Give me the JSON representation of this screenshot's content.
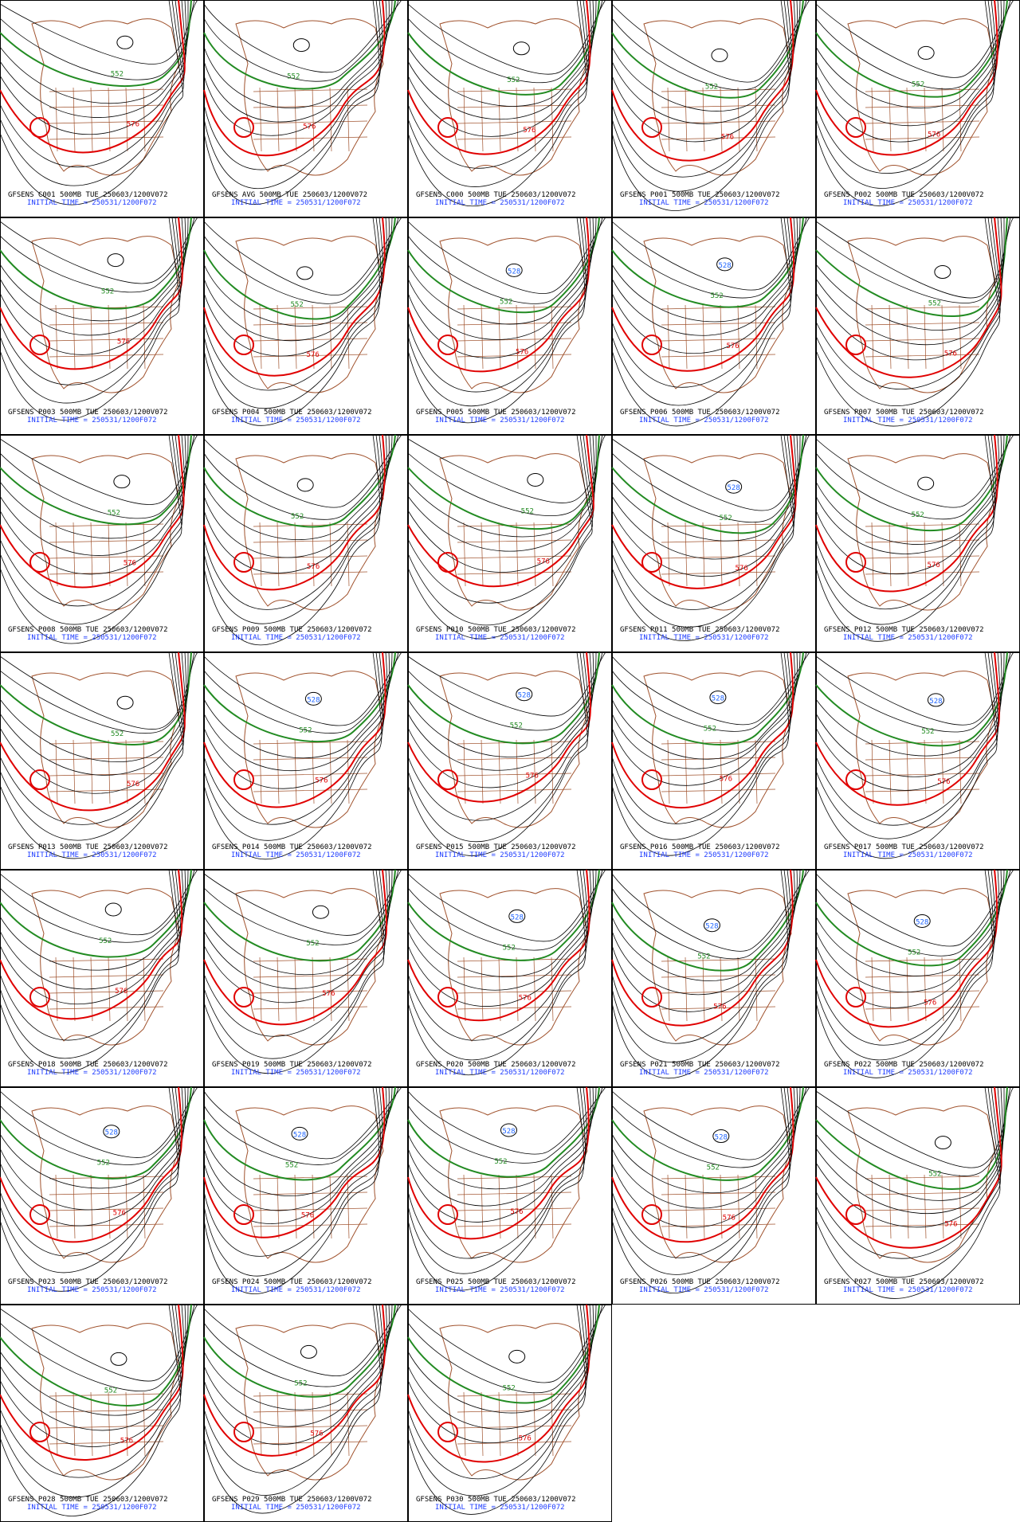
{
  "panels": [
    {
      "title": "GFSENS C001 500MB TUE 250603/1200V072",
      "subtitle": "INITIAL TIME = 250531/1200F072",
      "labels": [
        "552",
        "576"
      ]
    },
    {
      "title": "GFSENS AVG 500MB TUE 250603/1200V072",
      "subtitle": "INITIAL TIME = 250531/1200F072",
      "labels": [
        "552",
        "576"
      ]
    },
    {
      "title": "GFSENS C000 500MB TUE 250603/1200V072",
      "subtitle": "INITIAL TIME = 250531/1200F072",
      "labels": [
        "552",
        "576"
      ]
    },
    {
      "title": "GFSENS P001 500MB TUE 250603/1200V072",
      "subtitle": "INITIAL TIME = 250531/1200F072",
      "labels": [
        "552",
        "576"
      ]
    },
    {
      "title": "GFSENS P002 500MB TUE 250603/1200V072",
      "subtitle": "INITIAL TIME = 250531/1200F072",
      "labels": [
        "552",
        "576"
      ]
    },
    {
      "title": "GFSENS P003 500MB TUE 250603/1200V072",
      "subtitle": "INITIAL TIME = 250531/1200F072",
      "labels": [
        "552",
        "576"
      ]
    },
    {
      "title": "GFSENS P004 500MB TUE 250603/1200V072",
      "subtitle": "INITIAL TIME = 250531/1200F072",
      "labels": [
        "552",
        "576"
      ]
    },
    {
      "title": "GFSENS P005 500MB TUE 250603/1200V072",
      "subtitle": "INITIAL TIME = 250531/1200F072",
      "labels": [
        "528",
        "552",
        "576"
      ]
    },
    {
      "title": "GFSENS P006 500MB TUE 250603/1200V072",
      "subtitle": "INITIAL TIME = 250531/1200F072",
      "labels": [
        "528",
        "552",
        "576"
      ]
    },
    {
      "title": "GFSENS P007 500MB TUE 250603/1200V072",
      "subtitle": "INITIAL TIME = 250531/1200F072",
      "labels": [
        "552",
        "576"
      ]
    },
    {
      "title": "GFSENS P008 500MB TUE 250603/1200V072",
      "subtitle": "INITIAL TIME = 250531/1200F072",
      "labels": [
        "552",
        "576"
      ]
    },
    {
      "title": "GFSENS P009 500MB TUE 250603/1200V072",
      "subtitle": "INITIAL TIME = 250531/1200F072",
      "labels": [
        "552",
        "576"
      ]
    },
    {
      "title": "GFSENS P010 500MB TUE 250603/1200V072",
      "subtitle": "INITIAL TIME = 250531/1200F072",
      "labels": [
        "552",
        "576"
      ]
    },
    {
      "title": "GFSENS P011 500MB TUE 250603/1200V072",
      "subtitle": "INITIAL TIME = 250531/1200F072",
      "labels": [
        "528",
        "552",
        "576"
      ]
    },
    {
      "title": "GFSENS P012 500MB TUE 250603/1200V072",
      "subtitle": "INITIAL TIME = 250531/1200F072",
      "labels": [
        "552",
        "576"
      ]
    },
    {
      "title": "GFSENS P013 500MB TUE 250603/1200V072",
      "subtitle": "INITIAL TIME = 250531/1200F072",
      "labels": [
        "552",
        "576"
      ]
    },
    {
      "title": "GFSENS P014 500MB TUE 250603/1200V072",
      "subtitle": "INITIAL TIME = 250531/1200F072",
      "labels": [
        "528",
        "552",
        "576"
      ]
    },
    {
      "title": "GFSENS P015 500MB TUE 250603/1200V072",
      "subtitle": "INITIAL TIME = 250531/1200F072",
      "labels": [
        "528",
        "552",
        "576"
      ]
    },
    {
      "title": "GFSENS P016 500MB TUE 250603/1200V072",
      "subtitle": "INITIAL TIME = 250531/1200F072",
      "labels": [
        "528",
        "552",
        "576"
      ]
    },
    {
      "title": "GFSENS P017 500MB TUE 250603/1200V072",
      "subtitle": "INITIAL TIME = 250531/1200F072",
      "labels": [
        "528",
        "552",
        "576"
      ]
    },
    {
      "title": "GFSENS P018 500MB TUE 250603/1200V072",
      "subtitle": "INITIAL TIME = 250531/1200F072",
      "labels": [
        "552",
        "576"
      ]
    },
    {
      "title": "GFSENS P019 500MB TUE 250603/1200V072",
      "subtitle": "INITIAL TIME = 250531/1200F072",
      "labels": [
        "552",
        "576"
      ]
    },
    {
      "title": "GFSENS P020 500MB TUE 250603/1200V072",
      "subtitle": "INITIAL TIME = 250531/1200F072",
      "labels": [
        "528",
        "552",
        "576"
      ]
    },
    {
      "title": "GFSENS P021 500MB TUE 250603/1200V072",
      "subtitle": "INITIAL TIME = 250531/1200F072",
      "labels": [
        "528",
        "552",
        "576"
      ]
    },
    {
      "title": "GFSENS P022 500MB TUE 250603/1200V072",
      "subtitle": "INITIAL TIME = 250531/1200F072",
      "labels": [
        "528",
        "552",
        "576"
      ]
    },
    {
      "title": "GFSENS P023 500MB TUE 250603/1200V072",
      "subtitle": "INITIAL TIME = 250531/1200F072",
      "labels": [
        "528",
        "552",
        "576"
      ]
    },
    {
      "title": "GFSENS P024 500MB TUE 250603/1200V072",
      "subtitle": "INITIAL TIME = 250531/1200F072",
      "labels": [
        "528",
        "552",
        "576"
      ]
    },
    {
      "title": "GFSENS P025 500MB TUE 250603/1200V072",
      "subtitle": "INITIAL TIME = 250531/1200F072",
      "labels": [
        "528",
        "552",
        "576"
      ]
    },
    {
      "title": "GFSENS P026 500MB TUE 250603/1200V072",
      "subtitle": "INITIAL TIME = 250531/1200F072",
      "labels": [
        "528",
        "552",
        "576"
      ]
    },
    {
      "title": "GFSENS P027 500MB TUE 250603/1200V072",
      "subtitle": "INITIAL TIME = 250531/1200F072",
      "labels": [
        "552",
        "576"
      ]
    },
    {
      "title": "GFSENS P028 500MB TUE 250603/1200V072",
      "subtitle": "INITIAL TIME = 250531/1200F072",
      "labels": [
        "552",
        "576"
      ]
    },
    {
      "title": "GFSENS P029 500MB TUE 250603/1200V072",
      "subtitle": "INITIAL TIME = 250531/1200F072",
      "labels": [
        "552",
        "576"
      ]
    },
    {
      "title": "GFSENS P030 500MB TUE 250603/1200V072",
      "subtitle": "INITIAL TIME = 250531/1200F072",
      "labels": [
        "552",
        "576"
      ]
    }
  ]
}
